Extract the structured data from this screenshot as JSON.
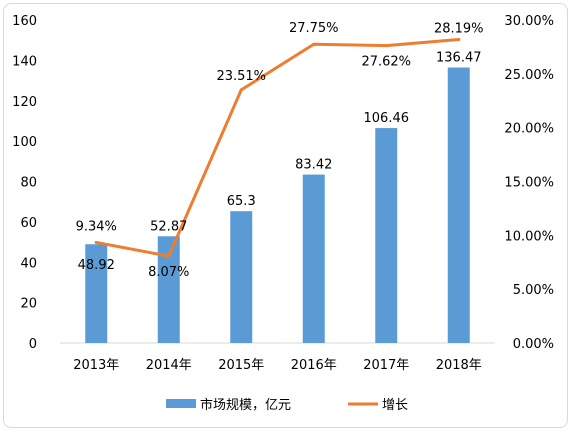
{
  "chart_data": {
    "type": "bar",
    "categories": [
      "2013年",
      "2014年",
      "2015年",
      "2016年",
      "2017年",
      "2018年"
    ],
    "series": [
      {
        "name": "市场规模，亿元",
        "type": "bar",
        "axis": "left",
        "color": "#5b9bd5",
        "values": [
          48.92,
          52.87,
          65.3,
          83.42,
          106.46,
          136.47
        ],
        "labels": [
          "48.92",
          "52.87",
          "65.3",
          "83.42",
          "106.46",
          "136.47"
        ]
      },
      {
        "name": "增长",
        "type": "line",
        "axis": "right",
        "color": "#ed7d31",
        "values": [
          9.34,
          8.07,
          23.51,
          27.75,
          27.62,
          28.19
        ],
        "labels": [
          "9.34%",
          "8.07%",
          "23.51%",
          "27.75%",
          "27.62%",
          "28.19%"
        ]
      }
    ],
    "y_left": {
      "min": 0,
      "max": 160,
      "ticks": [
        "0",
        "20",
        "40",
        "60",
        "80",
        "100",
        "120",
        "140",
        "160"
      ]
    },
    "y_right": {
      "min": 0,
      "max": 30,
      "ticks": [
        "0.00%",
        "5.00%",
        "10.00%",
        "15.00%",
        "20.00%",
        "25.00%",
        "30.00%"
      ]
    },
    "grid": false,
    "legend": "bottom"
  }
}
